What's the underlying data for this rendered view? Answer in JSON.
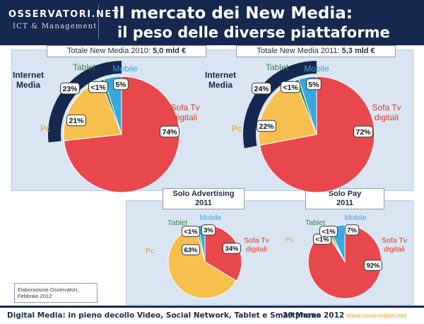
{
  "header": {
    "logo_top": "OSSERVATORI.NET",
    "logo_bottom": "ICT & Management",
    "title_line1": "Il mercato dei New Media:",
    "title_line2": "il peso delle diverse piattaforme"
  },
  "chart_data": [
    {
      "type": "pie",
      "title_lead": "Totale New Media 2010:",
      "title_value": "5,0 mld €",
      "group_label": "Internet Media",
      "slices": [
        {
          "name": "Sofa Tv digitali",
          "value": 74,
          "label": "74%",
          "color": "#e8484d"
        },
        {
          "name": "Pc",
          "value": 21,
          "label": "21%",
          "color": "#f6c04f"
        },
        {
          "name": "Tablet",
          "value": 1,
          "label": "<1%",
          "color": "#2f8a4a"
        },
        {
          "name": "Mobile",
          "value": 5,
          "label": "5%",
          "color": "#3aa7de"
        }
      ],
      "internet_media_label": "23%"
    },
    {
      "type": "pie",
      "title_lead": "Totale New Media 2011:",
      "title_value": "5,3 mld €",
      "group_label": "Internet Media",
      "slices": [
        {
          "name": "Sofa Tv digitali",
          "value": 72,
          "label": "72%",
          "color": "#e8484d"
        },
        {
          "name": "Pc",
          "value": 22,
          "label": "22%",
          "color": "#f6c04f"
        },
        {
          "name": "Tablet",
          "value": 1,
          "label": "<1%",
          "color": "#2f8a4a"
        },
        {
          "name": "Mobile",
          "value": 5,
          "label": "5%",
          "color": "#3aa7de"
        }
      ],
      "internet_media_label": "24%"
    },
    {
      "type": "pie",
      "title_line1": "Solo Advertising",
      "title_line2": "2011",
      "slices": [
        {
          "name": "Sofa Tv digitali",
          "value": 34,
          "label": "34%",
          "color": "#e8484d"
        },
        {
          "name": "Pc",
          "value": 63,
          "label": "63%",
          "color": "#f6c04f"
        },
        {
          "name": "Tablet",
          "value": 1,
          "label": "<1%",
          "color": "#2f8a4a"
        },
        {
          "name": "Mobile",
          "value": 3,
          "label": "3%",
          "color": "#3aa7de"
        }
      ]
    },
    {
      "type": "pie",
      "title_line1": "Solo Pay",
      "title_line2": "2011",
      "slices": [
        {
          "name": "Sofa Tv digitali",
          "value": 92,
          "label": "92%",
          "color": "#e8484d"
        },
        {
          "name": "Pc",
          "value": 1,
          "label": "<1%",
          "color": "#f6c04f"
        },
        {
          "name": "Tablet",
          "value": 1,
          "label": "<1%",
          "color": "#2f8a4a"
        },
        {
          "name": "Mobile",
          "value": 7,
          "label": "7%",
          "color": "#3aa7de"
        }
      ]
    }
  ],
  "legend_labels": {
    "internet_media_line1": "Internet",
    "internet_media_line2": "Media",
    "tablet": "Tablet",
    "mobile": "Mobile",
    "pc": "Pc",
    "sofa_line1": "Sofa Tv",
    "sofa_line2": "digitali"
  },
  "credit": {
    "line1": "Elaborazione Osservatori,",
    "line2": "Febbraio 2012"
  },
  "footer": {
    "text": "Digital Media: in pieno decollo Video, Social Network, Tablet e Smartphone",
    "date": "20 Marzo 2012",
    "url": "www.osservatori.net"
  },
  "colors": {
    "header_bg": "#15284d",
    "panel_bg": "#d9e5f3",
    "internet_media_arc": "#15284d",
    "label_internet": "#15284d",
    "label_tablet": "#2f8a4a",
    "label_mobile": "#3aa7de",
    "label_pc": "#e0a528",
    "label_sofa": "#d83c2c"
  }
}
